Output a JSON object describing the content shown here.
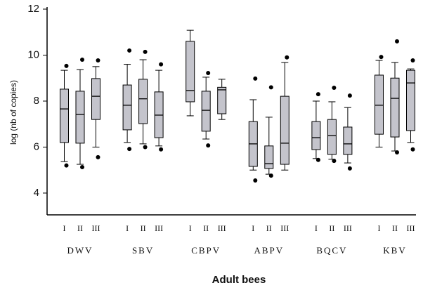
{
  "chart_data": {
    "type": "box",
    "y_label": "log (nb of copies)",
    "x_label": "Adult bees",
    "ylim": [
      3,
      12
    ],
    "yticks": [
      4,
      6,
      8,
      10,
      12
    ],
    "box_color": "#c4c4cc",
    "groups": [
      {
        "name": "DWV",
        "boxes": [
          {
            "label": "I",
            "whislo": 5.37,
            "q1": 6.2,
            "med": 7.66,
            "q3": 8.52,
            "whishi": 9.34,
            "fliers": [
              9.53,
              5.2
            ]
          },
          {
            "label": "II",
            "whislo": 5.25,
            "q1": 6.17,
            "med": 7.42,
            "q3": 8.43,
            "whishi": 9.37,
            "fliers": [
              9.8,
              5.13
            ]
          },
          {
            "label": "III",
            "whislo": 6.0,
            "q1": 7.2,
            "med": 8.21,
            "q3": 8.98,
            "whishi": 9.5,
            "fliers": [
              9.77,
              5.56
            ]
          }
        ]
      },
      {
        "name": "SBV",
        "boxes": [
          {
            "label": "I",
            "whislo": 6.2,
            "q1": 6.75,
            "med": 7.82,
            "q3": 8.7,
            "whishi": 9.6,
            "fliers": [
              10.2,
              5.92
            ]
          },
          {
            "label": "II",
            "whislo": 6.14,
            "q1": 7.02,
            "med": 8.1,
            "q3": 8.95,
            "whishi": 9.8,
            "fliers": [
              10.14,
              6.0
            ]
          },
          {
            "label": "III",
            "whislo": 6.05,
            "q1": 6.41,
            "med": 7.39,
            "q3": 8.4,
            "whishi": 9.34,
            "fliers": [
              9.6,
              5.9
            ]
          }
        ]
      },
      {
        "name": "CBPV",
        "boxes": [
          {
            "label": "I",
            "whislo": 7.36,
            "q1": 7.97,
            "med": 8.46,
            "q3": 10.6,
            "whishi": 11.08,
            "fliers": []
          },
          {
            "label": "II",
            "whislo": 6.35,
            "q1": 6.69,
            "med": 7.6,
            "q3": 8.43,
            "whishi": 9.04,
            "fliers": [
              9.22,
              6.07
            ]
          },
          {
            "label": "III",
            "whislo": 7.2,
            "q1": 7.45,
            "med": 8.49,
            "q3": 8.6,
            "whishi": 8.95,
            "fliers": []
          }
        ]
      },
      {
        "name": "ABPV",
        "boxes": [
          {
            "label": "I",
            "whislo": 5.0,
            "q1": 5.16,
            "med": 6.14,
            "q3": 7.11,
            "whishi": 8.06,
            "fliers": [
              8.98,
              4.55
            ]
          },
          {
            "label": "II",
            "whislo": 4.82,
            "q1": 5.07,
            "med": 5.28,
            "q3": 6.05,
            "whishi": 7.3,
            "fliers": [
              8.6,
              4.76
            ]
          },
          {
            "label": "III",
            "whislo": 5.0,
            "q1": 5.25,
            "med": 6.17,
            "q3": 8.21,
            "whishi": 9.68,
            "fliers": [
              9.9
            ]
          }
        ]
      },
      {
        "name": "BQCV",
        "boxes": [
          {
            "label": "I",
            "whislo": 5.5,
            "q1": 5.89,
            "med": 6.41,
            "q3": 7.11,
            "whishi": 8.0,
            "fliers": [
              8.3,
              5.44
            ]
          },
          {
            "label": "II",
            "whislo": 5.47,
            "q1": 5.68,
            "med": 6.5,
            "q3": 7.2,
            "whishi": 7.97,
            "fliers": [
              8.58,
              5.4
            ]
          },
          {
            "label": "III",
            "whislo": 5.31,
            "q1": 5.68,
            "med": 6.14,
            "q3": 6.87,
            "whishi": 7.72,
            "fliers": [
              8.24,
              5.07
            ]
          }
        ]
      },
      {
        "name": "KBV",
        "boxes": [
          {
            "label": "I",
            "whislo": 6.0,
            "q1": 6.56,
            "med": 7.82,
            "q3": 9.13,
            "whishi": 9.77,
            "fliers": [
              9.92
            ]
          },
          {
            "label": "II",
            "whislo": 5.83,
            "q1": 6.44,
            "med": 8.12,
            "q3": 9.0,
            "whishi": 9.68,
            "fliers": [
              10.6,
              5.77
            ]
          },
          {
            "label": "III",
            "whislo": 6.2,
            "q1": 6.72,
            "med": 8.79,
            "q3": 9.34,
            "whishi": 9.4,
            "fliers": [
              9.77,
              5.9
            ]
          }
        ]
      }
    ]
  }
}
